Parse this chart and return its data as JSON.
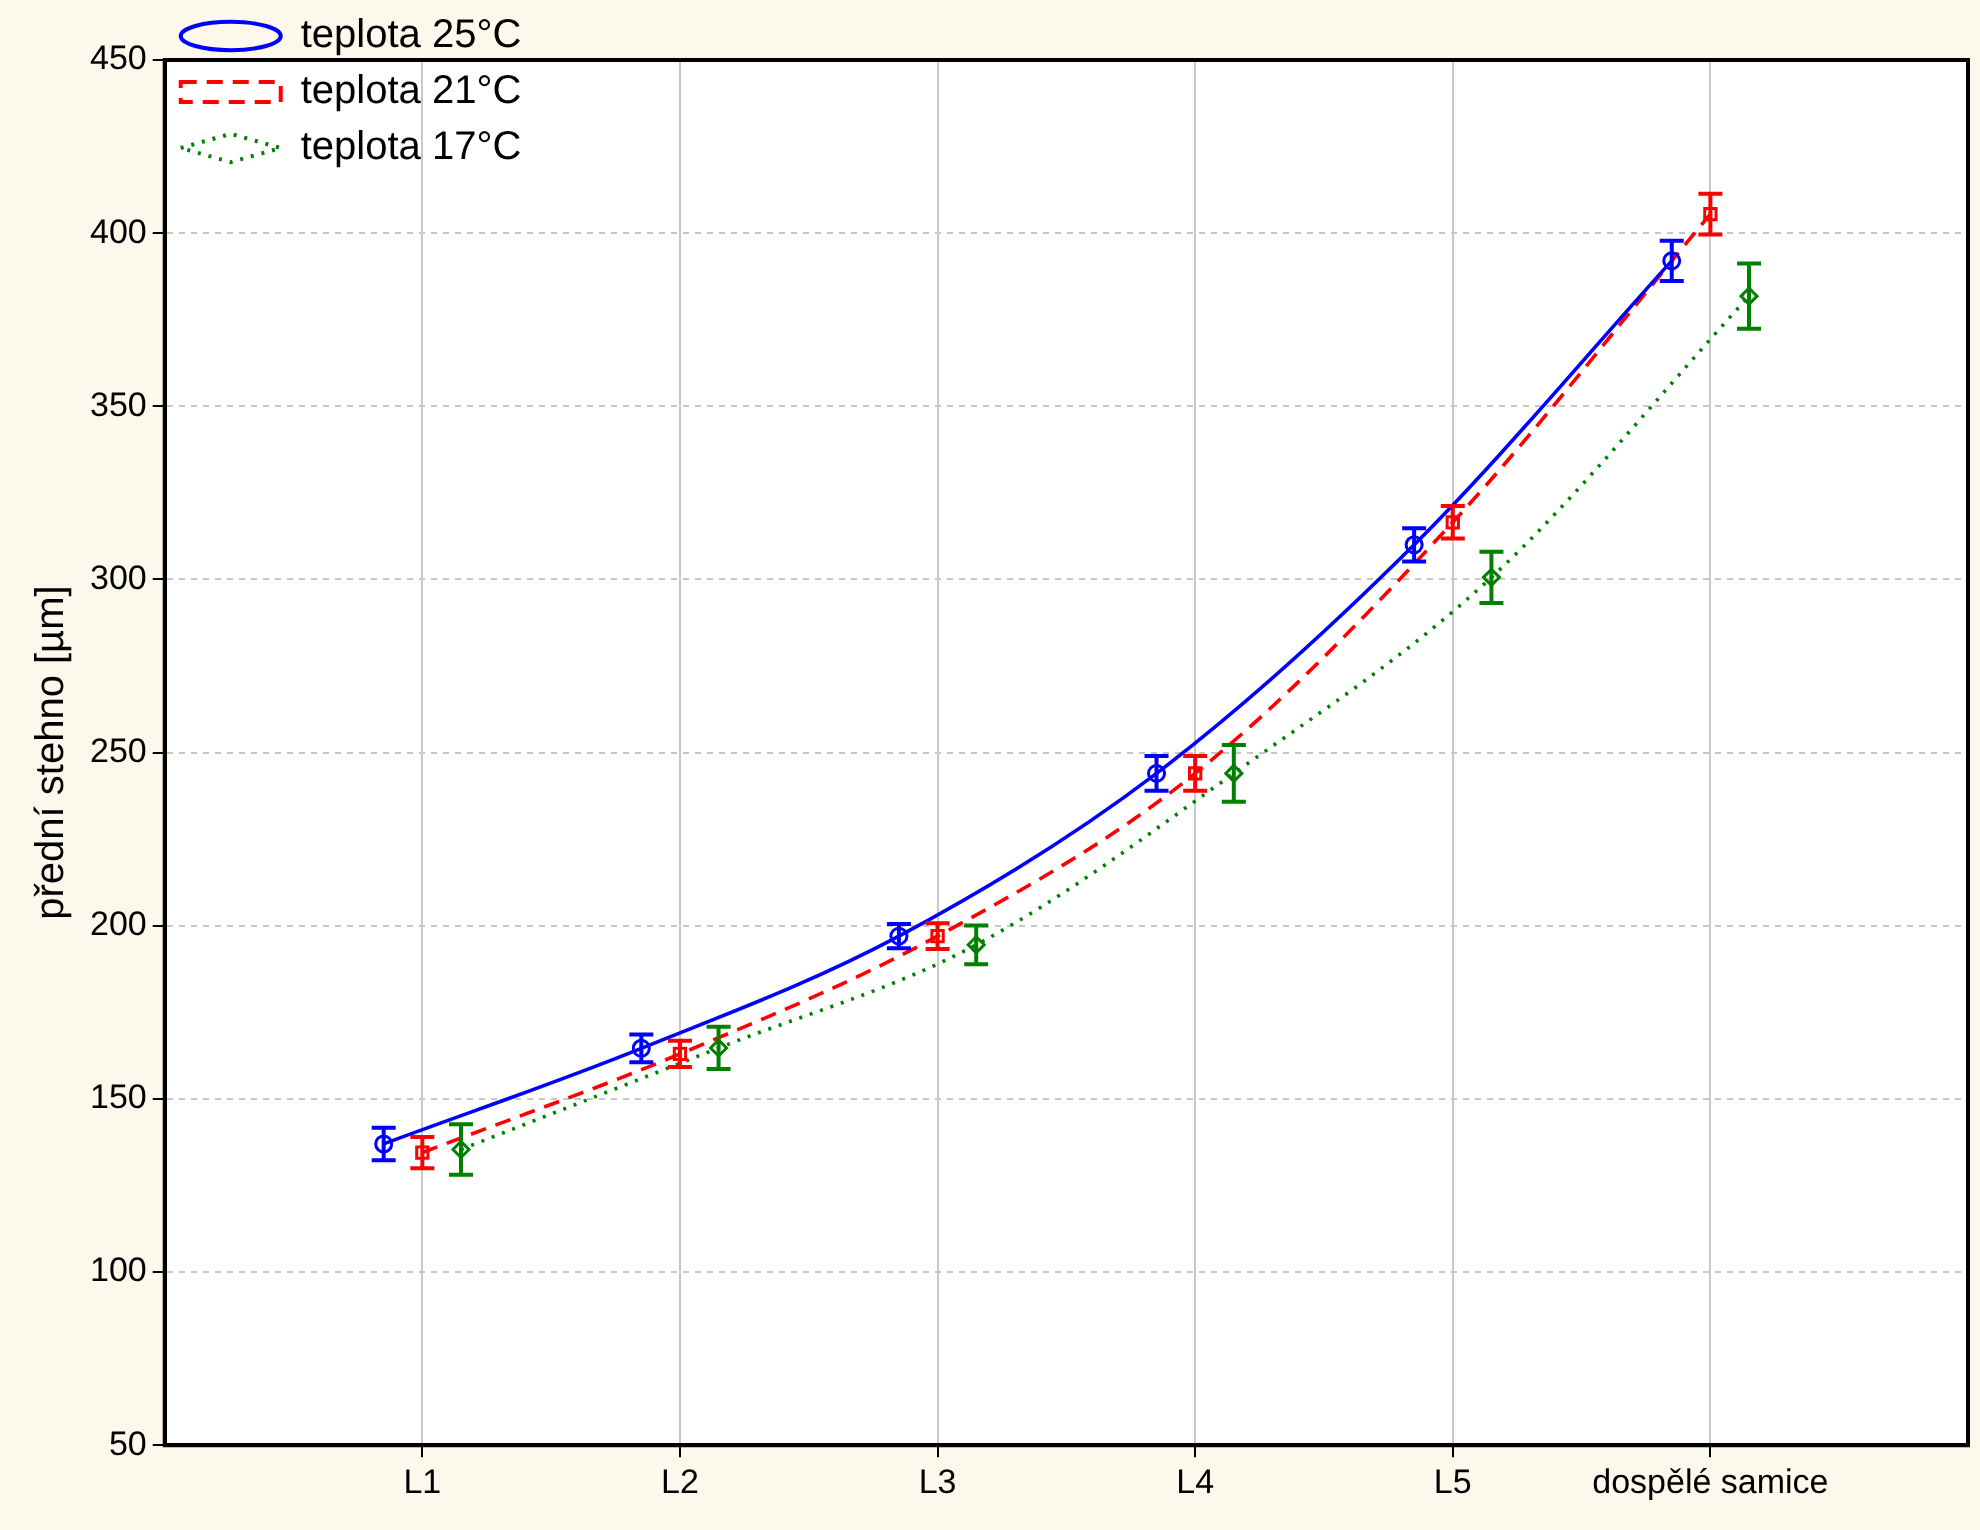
{
  "chart_data": {
    "type": "line",
    "ylabel": "přední stehno [µm]",
    "categories": [
      "L1",
      "L2",
      "L3",
      "L4",
      "L5",
      "dospělé samice"
    ],
    "ylim": [
      50,
      450
    ],
    "yticks": [
      50,
      100,
      150,
      200,
      250,
      300,
      350,
      400,
      450
    ],
    "grid": true,
    "legend": "top left",
    "series": [
      {
        "name": "teplota 25°C",
        "color": "#0000ff",
        "marker": "circle",
        "line_style": "solid",
        "values": [
          137,
          164.6,
          197,
          244,
          310,
          392
        ],
        "errors": [
          4.7,
          4,
          3.5,
          5,
          4.8,
          5.8
        ]
      },
      {
        "name": "teplota 21°C",
        "color": "#ff0000",
        "marker": "square",
        "line_style": "dashed",
        "values": [
          134.5,
          163,
          197,
          244,
          316.5,
          405.5
        ],
        "errors": [
          4.5,
          3.8,
          3.7,
          5,
          4.7,
          5.9
        ]
      },
      {
        "name": "teplota 17°C",
        "color": "#008000",
        "marker": "diamond",
        "line_style": "dotted",
        "values": [
          135.4,
          164.7,
          194.5,
          244,
          300.6,
          381.8
        ],
        "errors": [
          7.3,
          6.1,
          5.6,
          8.2,
          7.4,
          9.4
        ]
      }
    ]
  }
}
